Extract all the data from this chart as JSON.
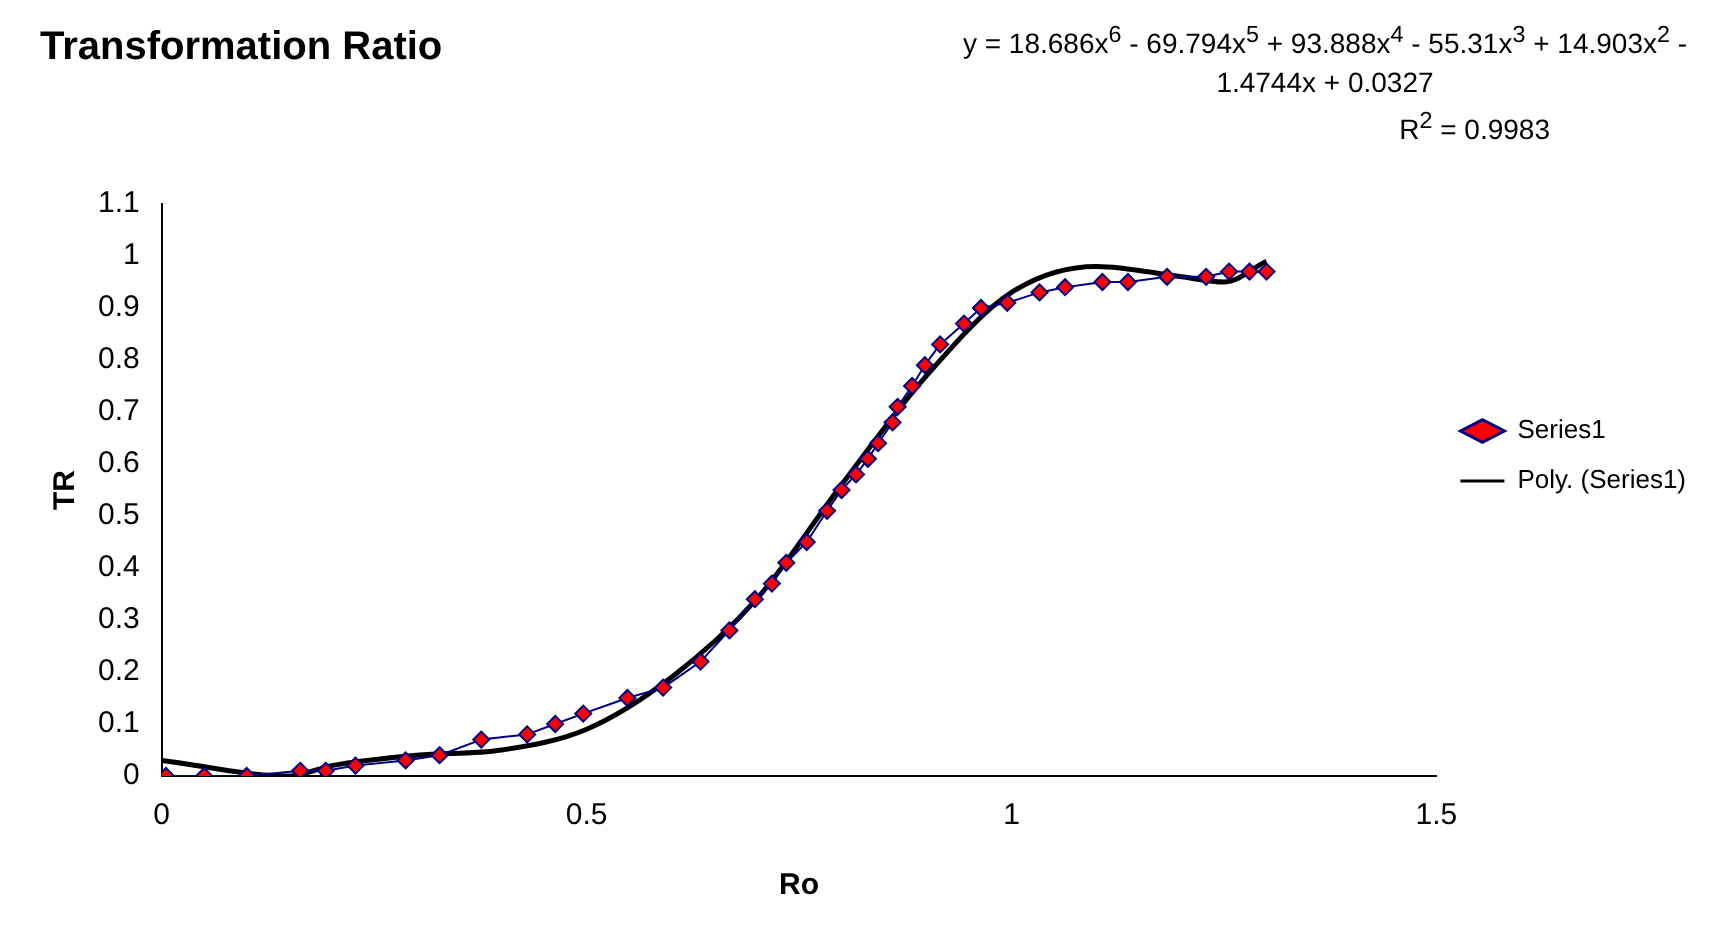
{
  "chart_data": {
    "type": "line",
    "title": "Transformation Ratio",
    "xlabel": "Ro",
    "ylabel": "TR",
    "annotations": [
      "y = 18.686x$^{6}$ - 69.794x$^{5}$ + 93.888x$^{4}$ - 55.31x$^{3}$ + 14.903x$^{2}$ - 1.4744x + 0.0327",
      "R$^{2}$ = 0.9983"
    ],
    "xlim": [
      0,
      1.5
    ],
    "xticks": [
      0,
      0.5,
      1,
      1.5
    ],
    "ylim": [
      0,
      1.1
    ],
    "yticks": [
      0,
      0.1,
      0.2,
      0.3,
      0.4,
      0.5,
      0.6,
      0.7,
      0.8,
      0.9,
      1,
      1.1
    ],
    "grid": false,
    "legend": "right",
    "marker": "diamond",
    "series": [
      {
        "name": "Series1",
        "color": "#ff0000",
        "x": [
          0.005,
          0.05,
          0.1,
          0.163,
          0.193,
          0.228,
          0.287,
          0.327,
          0.376,
          0.43,
          0.463,
          0.496,
          0.548,
          0.59,
          0.634,
          0.668,
          0.698,
          0.718,
          0.735,
          0.759,
          0.783,
          0.8,
          0.817,
          0.831,
          0.843,
          0.86,
          0.866,
          0.883,
          0.898,
          0.916,
          0.944,
          0.964,
          0.995,
          1.033,
          1.063,
          1.107,
          1.137,
          1.183,
          1.229,
          1.256,
          1.28,
          1.3
        ],
        "values": [
          0,
          0,
          0,
          0.01,
          0.01,
          0.02,
          0.03,
          0.04,
          0.07,
          0.08,
          0.1,
          0.12,
          0.15,
          0.17,
          0.22,
          0.28,
          0.34,
          0.37,
          0.41,
          0.45,
          0.51,
          0.55,
          0.58,
          0.61,
          0.64,
          0.68,
          0.71,
          0.75,
          0.79,
          0.83,
          0.87,
          0.9,
          0.91,
          0.93,
          0.94,
          0.95,
          0.95,
          0.96,
          0.96,
          0.97,
          0.97,
          0.97
        ]
      },
      {
        "name": "Poly. (Series1)",
        "color": "#000000",
        "marker": "none",
        "x": [
          0,
          0.15,
          0.2,
          0.3,
          0.4,
          0.5,
          0.6,
          0.7,
          0.8,
          0.9,
          1,
          1.1,
          1.2,
          1.25,
          1.3
        ],
        "values": [
          0.03,
          0,
          0.02,
          0.04,
          0.05,
          0.09,
          0.19,
          0.34,
          0.56,
          0.77,
          0.93,
          0.98,
          0.96,
          0.95,
          0.99
        ]
      }
    ]
  }
}
